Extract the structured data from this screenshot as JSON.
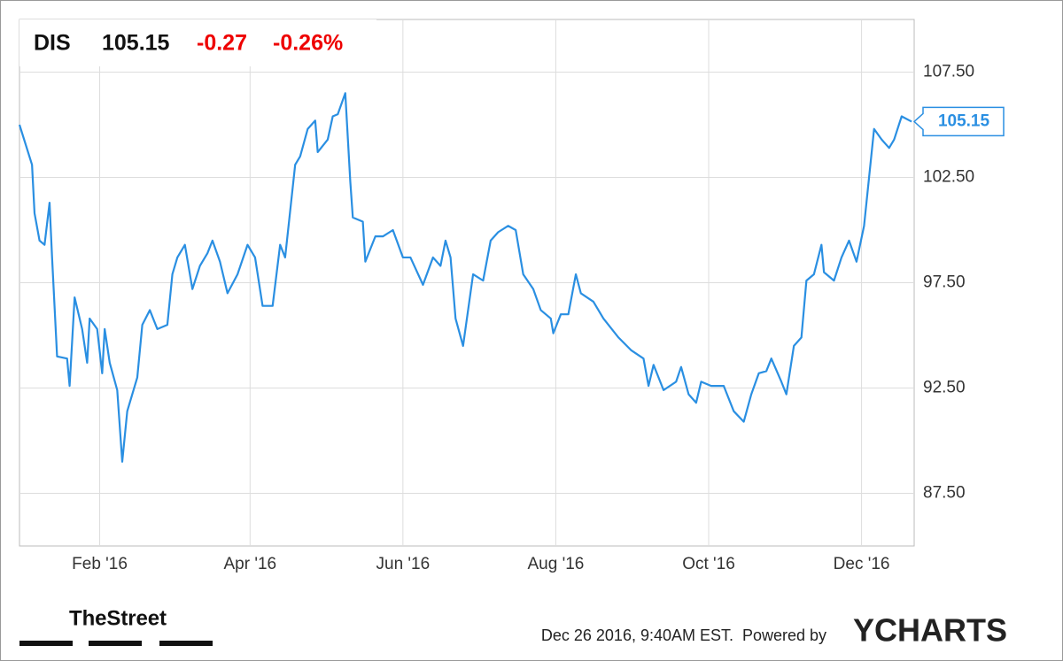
{
  "header": {
    "ticker": "DIS",
    "price": "105.15",
    "change": "-0.27",
    "change_percent": "-0.26%"
  },
  "chart_data": {
    "type": "line",
    "x": [
      -1,
      4,
      5,
      7,
      9,
      11,
      12,
      14,
      18,
      19,
      21,
      24,
      26,
      27,
      30,
      32,
      33,
      35,
      38,
      40,
      42,
      46,
      48,
      51,
      54,
      58,
      60,
      62,
      65,
      68,
      71,
      74,
      76,
      79,
      82,
      86,
      90,
      93,
      96,
      100,
      103,
      105,
      109,
      111,
      114,
      117,
      118,
      122,
      124,
      126,
      129,
      131,
      132,
      136,
      137,
      141,
      144,
      148,
      152,
      155,
      160,
      164,
      167,
      169,
      171,
      173,
      176,
      180,
      184,
      187,
      190,
      194,
      197,
      200,
      204,
      207,
      211,
      212,
      215,
      218,
      221,
      223,
      228,
      232,
      238,
      243,
      248,
      250,
      252,
      256,
      261,
      263,
      266,
      269,
      271,
      275,
      280,
      284,
      288,
      291,
      294,
      297,
      299,
      303,
      305,
      308,
      311,
      313,
      316,
      319,
      320,
      324,
      327,
      330,
      333,
      336,
      340,
      343,
      346,
      348,
      351,
      355
    ],
    "series": [
      {
        "name": "DIS",
        "color": "#2a8fe2",
        "values": [
          105.0,
          103.1,
          100.8,
          99.5,
          99.3,
          101.3,
          98.7,
          94.0,
          93.9,
          92.6,
          96.8,
          95.3,
          93.7,
          95.8,
          95.3,
          93.2,
          95.3,
          93.7,
          92.4,
          89.0,
          91.4,
          93.0,
          95.5,
          96.2,
          95.3,
          95.5,
          97.9,
          98.7,
          99.3,
          97.2,
          98.3,
          98.9,
          99.5,
          98.5,
          97.0,
          97.9,
          99.3,
          98.7,
          96.4,
          96.4,
          99.3,
          98.7,
          103.1,
          103.5,
          104.8,
          105.2,
          103.7,
          104.3,
          105.4,
          105.5,
          106.5,
          102.3,
          100.6,
          100.4,
          98.5,
          99.7,
          99.7,
          100.0,
          98.7,
          98.7,
          97.4,
          98.7,
          98.3,
          99.5,
          98.7,
          95.8,
          94.5,
          97.9,
          97.6,
          99.5,
          99.9,
          100.2,
          100.0,
          97.9,
          97.2,
          96.2,
          95.8,
          95.1,
          96.0,
          96.0,
          97.9,
          97.0,
          96.6,
          95.8,
          94.9,
          94.3,
          93.9,
          92.6,
          93.6,
          92.4,
          92.8,
          93.5,
          92.2,
          91.8,
          92.8,
          92.6,
          92.6,
          91.4,
          90.9,
          92.2,
          93.2,
          93.3,
          93.9,
          92.8,
          92.2,
          94.5,
          94.9,
          97.6,
          97.9,
          99.3,
          98.0,
          97.6,
          98.7,
          99.5,
          98.5,
          100.2,
          104.8,
          104.3,
          103.9,
          104.3,
          105.4,
          105.15
        ]
      }
    ],
    "xlim": [
      -1,
      356
    ],
    "xticks": [
      {
        "value": 31,
        "label": "Feb '16"
      },
      {
        "value": 91,
        "label": "Apr '16"
      },
      {
        "value": 152,
        "label": "Jun '16"
      },
      {
        "value": 213,
        "label": "Aug '16"
      },
      {
        "value": 274,
        "label": "Oct '16"
      },
      {
        "value": 335,
        "label": "Dec '16"
      }
    ],
    "ylim": [
      85,
      110
    ],
    "yticks": [
      {
        "value": 87.5,
        "label": "87.50"
      },
      {
        "value": 92.5,
        "label": "92.50"
      },
      {
        "value": 97.5,
        "label": "97.50"
      },
      {
        "value": 102.5,
        "label": "102.50"
      },
      {
        "value": 107.5,
        "label": "107.50"
      }
    ],
    "grid": true
  },
  "footer": {
    "brand": "TheStreet",
    "timestamp": "Dec 26 2016, 9:40AM EST.",
    "powered_by": "Powered by",
    "provider": "YCHARTS"
  }
}
